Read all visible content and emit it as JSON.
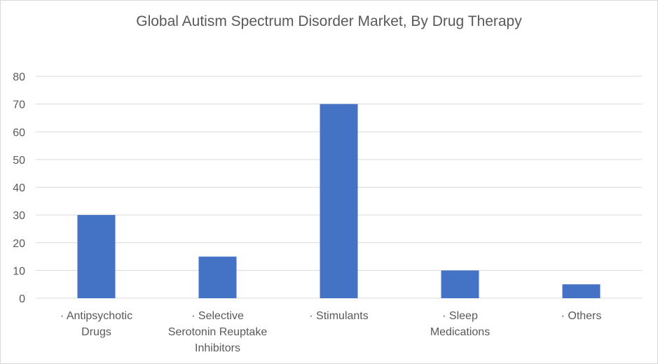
{
  "chart_data": {
    "type": "bar",
    "title": "Global Autism Spectrum Disorder Market, By Drug Therapy",
    "xlabel": "",
    "ylabel": "",
    "categories": [
      "Antipsychotic Drugs",
      "Selective Serotonin Reuptake Inhibitors",
      "Stimulants",
      "Sleep Medications",
      "Others"
    ],
    "category_label_lines": [
      [
        "·    Antipsychotic",
        "Drugs"
      ],
      [
        "·        Selective",
        "Serotonin Reuptake",
        "Inhibitors"
      ],
      [
        "·        Stimulants"
      ],
      [
        "·         Sleep",
        "Medications"
      ],
      [
        "·        Others"
      ]
    ],
    "values": [
      30,
      15,
      70,
      10,
      5
    ],
    "ylim": [
      0,
      80
    ],
    "yticks": [
      0,
      10,
      20,
      30,
      40,
      50,
      60,
      70,
      80
    ],
    "grid": true,
    "legend": "none",
    "bar_color": "#4472c4",
    "grid_color": "#d9d9d9"
  }
}
